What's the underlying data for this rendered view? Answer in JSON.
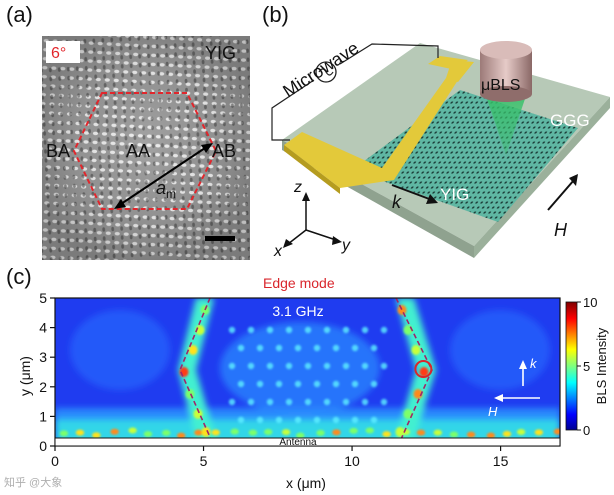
{
  "panel_a": {
    "label": "(a)",
    "angle": "6°",
    "material": "YIG",
    "region_ba": "BA",
    "region_aa": "AA",
    "region_ab": "AB",
    "lattice_symbol": "a",
    "lattice_subscript": "m"
  },
  "panel_b": {
    "label": "(b)",
    "microwave": "Microwave",
    "probe": "μBLS",
    "substrate": "GGG",
    "film": "YIG",
    "k_label": "k",
    "h_label": "H",
    "axis_z": "z",
    "axis_x": "x",
    "axis_y": "y"
  },
  "panel_c": {
    "label": "(c)",
    "annotation": "Edge mode",
    "frequency": "3.1 GHz",
    "antenna": "Antenna",
    "k_label": "k",
    "h_label": "H",
    "colors": {
      "edge_mode": "#d9262c",
      "arrows": "#ffffff"
    }
  },
  "chart_data": {
    "type": "heatmap",
    "title": "3.1 GHz",
    "xlabel": "x (μm)",
    "ylabel": "y (μm)",
    "xlim": [
      0,
      17
    ],
    "ylim": [
      0,
      5
    ],
    "x_ticks": [
      "0",
      "5",
      "10",
      "15"
    ],
    "y_ticks": [
      "0",
      "1",
      "2",
      "3",
      "4",
      "5"
    ],
    "colorbar": {
      "label": "BLS Intensity",
      "ticks": [
        "0",
        "5",
        "10"
      ],
      "range": [
        0,
        10
      ]
    },
    "edge_mode_marker": {
      "x": 12.4,
      "y": 2.6
    }
  },
  "watermark": "知乎 @大象"
}
